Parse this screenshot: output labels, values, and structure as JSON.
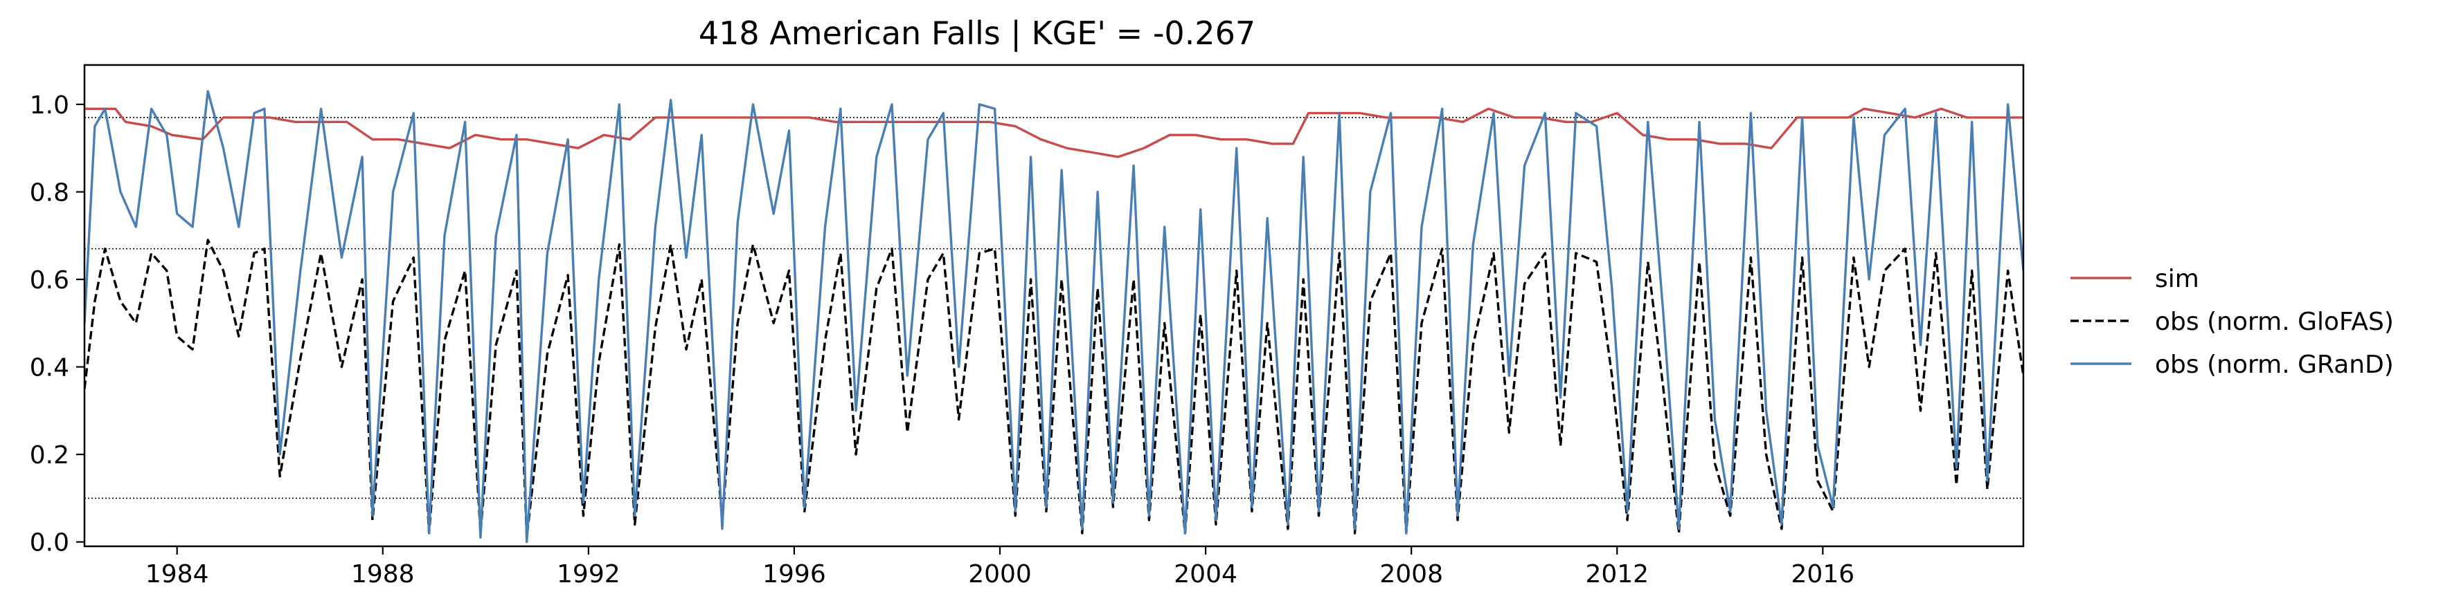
{
  "chart_data": {
    "type": "line",
    "title": "418  American Falls | KGE' = -0.267",
    "xlabel": "",
    "ylabel": "",
    "xlim": [
      1982.2,
      2019.9
    ],
    "ylim": [
      -0.01,
      1.09
    ],
    "x_ticks": [
      1984,
      1988,
      1992,
      1996,
      2000,
      2004,
      2008,
      2012,
      2016
    ],
    "x_tick_labels": [
      "1984",
      "1988",
      "1992",
      "1996",
      "2000",
      "2004",
      "2008",
      "2012",
      "2016"
    ],
    "y_ticks": [
      0.0,
      0.2,
      0.4,
      0.6,
      0.8,
      1.0
    ],
    "y_tick_labels": [
      "0.0",
      "0.2",
      "0.4",
      "0.6",
      "0.8",
      "1.0"
    ],
    "reference_lines": [
      0.97,
      0.67,
      0.1
    ],
    "legend_position": "right, outside",
    "series": [
      {
        "name": "sim",
        "color": "#c94b4b",
        "style": "solid",
        "x": [
          1982.2,
          1982.8,
          1983.0,
          1983.5,
          1983.9,
          1984.5,
          1984.9,
          1985.3,
          1985.8,
          1986.3,
          1986.8,
          1987.3,
          1987.8,
          1988.3,
          1988.8,
          1989.3,
          1989.8,
          1990.3,
          1990.8,
          1991.3,
          1991.8,
          1992.3,
          1992.8,
          1993.3,
          1993.8,
          1994.3,
          1994.8,
          1995.3,
          1995.8,
          1996.3,
          1996.8,
          1997.3,
          1997.8,
          1998.3,
          1998.8,
          1999.3,
          1999.8,
          2000.3,
          2000.8,
          2001.3,
          2001.8,
          2002.3,
          2002.8,
          2003.3,
          2003.8,
          2004.3,
          2004.8,
          2005.3,
          2005.7,
          2006.0,
          2006.5,
          2007.0,
          2007.5,
          2008.0,
          2008.5,
          2009.0,
          2009.5,
          2010.0,
          2010.5,
          2011.0,
          2011.5,
          2012.0,
          2012.5,
          2013.0,
          2013.5,
          2014.0,
          2014.5,
          2015.0,
          2015.5,
          2016.0,
          2016.5,
          2016.8,
          2017.3,
          2017.8,
          2018.3,
          2018.8,
          2019.3,
          2019.9
        ],
        "y": [
          0.99,
          0.99,
          0.96,
          0.95,
          0.93,
          0.92,
          0.97,
          0.97,
          0.97,
          0.96,
          0.96,
          0.96,
          0.92,
          0.92,
          0.91,
          0.9,
          0.93,
          0.92,
          0.92,
          0.91,
          0.9,
          0.93,
          0.92,
          0.97,
          0.97,
          0.97,
          0.97,
          0.97,
          0.97,
          0.97,
          0.96,
          0.96,
          0.96,
          0.96,
          0.96,
          0.96,
          0.96,
          0.95,
          0.92,
          0.9,
          0.89,
          0.88,
          0.9,
          0.93,
          0.93,
          0.92,
          0.92,
          0.91,
          0.91,
          0.98,
          0.98,
          0.98,
          0.97,
          0.97,
          0.97,
          0.96,
          0.99,
          0.97,
          0.97,
          0.96,
          0.96,
          0.98,
          0.93,
          0.92,
          0.92,
          0.91,
          0.91,
          0.9,
          0.97,
          0.97,
          0.97,
          0.99,
          0.98,
          0.97,
          0.99,
          0.97,
          0.97,
          0.97
        ]
      },
      {
        "name": "obs (norm. GloFAS)",
        "color": "#000000",
        "style": "dashed",
        "x": [
          1982.2,
          1982.4,
          1982.6,
          1982.9,
          1983.2,
          1983.5,
          1983.8,
          1984.0,
          1984.3,
          1984.6,
          1984.9,
          1985.2,
          1985.5,
          1985.7,
          1986.0,
          1986.4,
          1986.8,
          1987.2,
          1987.6,
          1987.8,
          1988.2,
          1988.6,
          1988.9,
          1989.2,
          1989.6,
          1989.9,
          1990.2,
          1990.6,
          1990.8,
          1991.2,
          1991.6,
          1991.9,
          1992.2,
          1992.6,
          1992.9,
          1993.3,
          1993.6,
          1993.9,
          1994.2,
          1994.6,
          1994.9,
          1995.2,
          1995.6,
          1995.9,
          1996.2,
          1996.6,
          1996.9,
          1997.2,
          1997.6,
          1997.9,
          1998.2,
          1998.6,
          1998.9,
          1999.2,
          1999.6,
          1999.9,
          2000.3,
          2000.6,
          2000.9,
          2001.2,
          2001.6,
          2001.9,
          2002.2,
          2002.6,
          2002.9,
          2003.2,
          2003.6,
          2003.9,
          2004.2,
          2004.6,
          2004.9,
          2005.2,
          2005.6,
          2005.9,
          2006.2,
          2006.6,
          2006.9,
          2007.2,
          2007.6,
          2007.9,
          2008.2,
          2008.6,
          2008.9,
          2009.2,
          2009.6,
          2009.9,
          2010.2,
          2010.6,
          2010.9,
          2011.2,
          2011.6,
          2011.9,
          2012.2,
          2012.6,
          2012.9,
          2013.2,
          2013.6,
          2013.9,
          2014.2,
          2014.6,
          2014.9,
          2015.2,
          2015.6,
          2015.9,
          2016.2,
          2016.6,
          2016.9,
          2017.2,
          2017.6,
          2017.9,
          2018.2,
          2018.6,
          2018.9,
          2019.2,
          2019.6,
          2019.9
        ],
        "y": [
          0.35,
          0.55,
          0.67,
          0.55,
          0.5,
          0.66,
          0.62,
          0.47,
          0.44,
          0.69,
          0.62,
          0.47,
          0.66,
          0.67,
          0.15,
          0.42,
          0.66,
          0.4,
          0.6,
          0.05,
          0.55,
          0.65,
          0.02,
          0.46,
          0.62,
          0.02,
          0.45,
          0.62,
          0.01,
          0.43,
          0.61,
          0.06,
          0.41,
          0.68,
          0.04,
          0.49,
          0.68,
          0.44,
          0.6,
          0.05,
          0.5,
          0.68,
          0.5,
          0.62,
          0.07,
          0.46,
          0.66,
          0.2,
          0.58,
          0.67,
          0.25,
          0.6,
          0.66,
          0.28,
          0.66,
          0.67,
          0.06,
          0.6,
          0.07,
          0.6,
          0.02,
          0.58,
          0.08,
          0.6,
          0.05,
          0.5,
          0.02,
          0.52,
          0.04,
          0.62,
          0.07,
          0.5,
          0.03,
          0.6,
          0.06,
          0.66,
          0.02,
          0.55,
          0.66,
          0.02,
          0.5,
          0.67,
          0.05,
          0.45,
          0.66,
          0.25,
          0.59,
          0.66,
          0.22,
          0.66,
          0.64,
          0.38,
          0.05,
          0.64,
          0.35,
          0.02,
          0.64,
          0.18,
          0.06,
          0.65,
          0.2,
          0.03,
          0.65,
          0.14,
          0.07,
          0.65,
          0.4,
          0.62,
          0.67,
          0.3,
          0.66,
          0.13,
          0.62,
          0.12,
          0.62,
          0.38
        ]
      },
      {
        "name": "obs (norm. GRanD)",
        "color": "#4a7fb3",
        "style": "solid",
        "x": [
          1982.2,
          1982.4,
          1982.6,
          1982.9,
          1983.2,
          1983.5,
          1983.8,
          1984.0,
          1984.3,
          1984.6,
          1984.9,
          1985.2,
          1985.5,
          1985.7,
          1986.0,
          1986.4,
          1986.8,
          1987.2,
          1987.6,
          1987.8,
          1988.2,
          1988.6,
          1988.9,
          1989.2,
          1989.6,
          1989.9,
          1990.2,
          1990.6,
          1990.8,
          1991.2,
          1991.6,
          1991.9,
          1992.2,
          1992.6,
          1992.9,
          1993.3,
          1993.6,
          1993.9,
          1994.2,
          1994.6,
          1994.9,
          1995.2,
          1995.6,
          1995.9,
          1996.2,
          1996.6,
          1996.9,
          1997.2,
          1997.6,
          1997.9,
          1998.2,
          1998.6,
          1998.9,
          1999.2,
          1999.6,
          1999.9,
          2000.3,
          2000.6,
          2000.9,
          2001.2,
          2001.6,
          2001.9,
          2002.2,
          2002.6,
          2002.9,
          2003.2,
          2003.6,
          2003.9,
          2004.2,
          2004.6,
          2004.9,
          2005.2,
          2005.6,
          2005.9,
          2006.2,
          2006.6,
          2006.9,
          2007.2,
          2007.6,
          2007.9,
          2008.2,
          2008.6,
          2008.9,
          2009.2,
          2009.6,
          2009.9,
          2010.2,
          2010.6,
          2010.9,
          2011.2,
          2011.6,
          2011.9,
          2012.2,
          2012.6,
          2012.9,
          2013.2,
          2013.6,
          2013.9,
          2014.2,
          2014.6,
          2014.9,
          2015.2,
          2015.6,
          2015.9,
          2016.2,
          2016.6,
          2016.9,
          2017.2,
          2017.6,
          2017.9,
          2018.2,
          2018.6,
          2018.9,
          2019.2,
          2019.6,
          2019.9
        ],
        "y": [
          0.5,
          0.95,
          0.99,
          0.8,
          0.72,
          0.99,
          0.93,
          0.75,
          0.72,
          1.03,
          0.9,
          0.72,
          0.98,
          0.99,
          0.2,
          0.62,
          0.99,
          0.65,
          0.88,
          0.06,
          0.8,
          0.98,
          0.02,
          0.7,
          0.96,
          0.01,
          0.7,
          0.93,
          0.0,
          0.66,
          0.92,
          0.09,
          0.6,
          1.0,
          0.06,
          0.72,
          1.01,
          0.65,
          0.93,
          0.03,
          0.73,
          1.0,
          0.75,
          0.94,
          0.08,
          0.72,
          0.99,
          0.3,
          0.88,
          1.0,
          0.38,
          0.92,
          0.98,
          0.4,
          1.0,
          0.99,
          0.07,
          0.88,
          0.08,
          0.85,
          0.03,
          0.8,
          0.09,
          0.86,
          0.06,
          0.72,
          0.02,
          0.76,
          0.05,
          0.9,
          0.08,
          0.74,
          0.04,
          0.88,
          0.07,
          0.98,
          0.03,
          0.8,
          0.98,
          0.02,
          0.72,
          0.99,
          0.06,
          0.68,
          0.98,
          0.38,
          0.86,
          0.98,
          0.33,
          0.98,
          0.95,
          0.58,
          0.07,
          0.96,
          0.52,
          0.03,
          0.96,
          0.28,
          0.07,
          0.98,
          0.3,
          0.04,
          0.97,
          0.22,
          0.08,
          0.97,
          0.6,
          0.93,
          0.99,
          0.45,
          0.98,
          0.17,
          0.96,
          0.14,
          1.0,
          0.62
        ]
      }
    ]
  }
}
